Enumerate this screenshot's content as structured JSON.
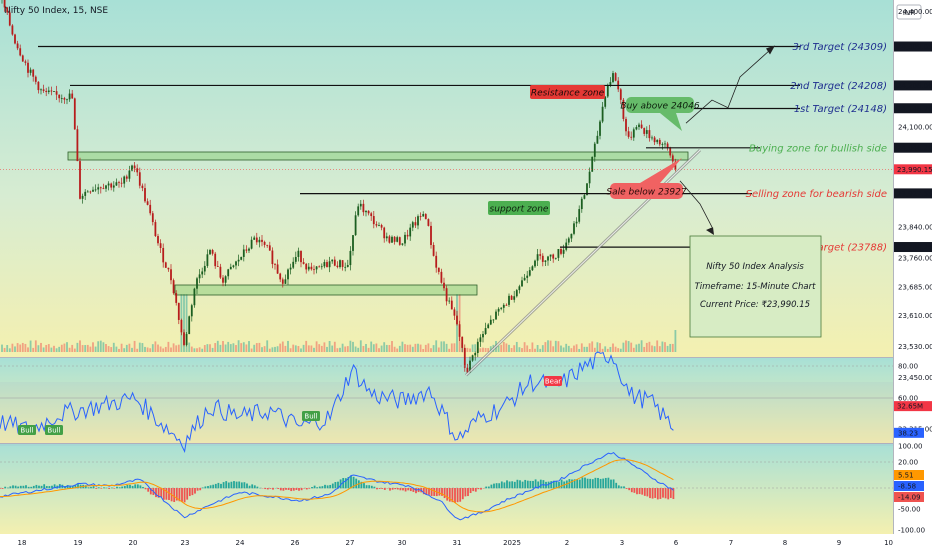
{
  "header": {
    "title": "Nifty 50 Index, 15, NSE",
    "currency": "INR"
  },
  "colors": {
    "target_blue": "#1f2f8f",
    "bull_green": "#4caf50",
    "bear_red": "#e53935",
    "rsi_line": "#2962ff",
    "macd_line": "#2962ff",
    "signal_line": "#ff9800",
    "hist_up": "#26a69a",
    "hist_down": "#ef5350"
  },
  "price_axis": {
    "ticks": [
      "24,400.00",
      "24,100.00",
      "23,840.00",
      "23,760.00",
      "23,685.00",
      "23,610.00",
      "23,530.00",
      "23,450.00",
      "23,315.00"
    ],
    "tags": [
      {
        "text": "24,309.05",
        "price": 24309.05,
        "style": "dark"
      },
      {
        "text": "24,208.00",
        "price": 24208,
        "style": "dark"
      },
      {
        "text": "24,148.70",
        "price": 24148.7,
        "style": "dark"
      },
      {
        "text": "24,046.20",
        "price": 24046.2,
        "style": "dark"
      },
      {
        "text": "23,990.15",
        "price": 23990.15,
        "style": "red"
      },
      {
        "text": "23,927.55",
        "price": 23927.55,
        "style": "dark"
      },
      {
        "text": "23,788.25",
        "price": 23788.25,
        "style": "dark"
      },
      {
        "text": "32.65M",
        "price": 23375,
        "style": "red"
      }
    ]
  },
  "rsi_axis": {
    "ticks": [
      "80.00",
      "60.00",
      "20.00"
    ],
    "value_tag": "38.23"
  },
  "macd_axis": {
    "ticks": [
      "100.00",
      "-50.00",
      "-100.00"
    ],
    "tags": [
      "5.51",
      "-8.58",
      "-14.09"
    ]
  },
  "date_labels": [
    "18",
    "19",
    "20",
    "23",
    "24",
    "26",
    "27",
    "30",
    "31",
    "2025",
    "2",
    "3",
    "6",
    "7",
    "8",
    "9",
    "10"
  ],
  "annotations": {
    "target3": "3rd Target (24309)",
    "target2": "2nd Target (24208)",
    "target1": "1st Target (24148)",
    "buy_zone": "Buying zone for bullish side",
    "sell_zone": "Selling zone for bearish side",
    "target_low": "Target (23788)",
    "resistance": "Resistance zone",
    "support": "support zone",
    "buy_above": "Buy above 24046",
    "sale_below": "Sale below 23927",
    "rsi_bear": "Bear",
    "rsi_bull": "Bull"
  },
  "info_box": {
    "line1": "Nifty 50 Index Analysis",
    "line2": "Timeframe: 15-Minute Chart",
    "line3": "Current Price: ₹23,990.15"
  },
  "chart_data": {
    "type": "line",
    "title": "Nifty 50 Index, 15, NSE",
    "x": [
      "18",
      "19",
      "20",
      "23",
      "24",
      "26",
      "27",
      "30",
      "31",
      "2025",
      "2",
      "3",
      "6"
    ],
    "series": [
      {
        "values": [
          24470,
          24190,
          23920,
          23520,
          23780,
          23760,
          23900,
          23840,
          23440,
          23700,
          23940,
          24240,
          23990
        ]
      }
    ],
    "ylim": [
      23315,
      24470
    ],
    "horizontal_levels": [
      24309,
      24208,
      24148,
      24046,
      23927,
      23788
    ],
    "current_price": 23990.15,
    "rsi": {
      "ylim": [
        20,
        80
      ],
      "last": 38.23
    },
    "macd": {
      "macd": -8.58,
      "signal": 5.51,
      "histogram": -14.09
    },
    "grid": false
  }
}
